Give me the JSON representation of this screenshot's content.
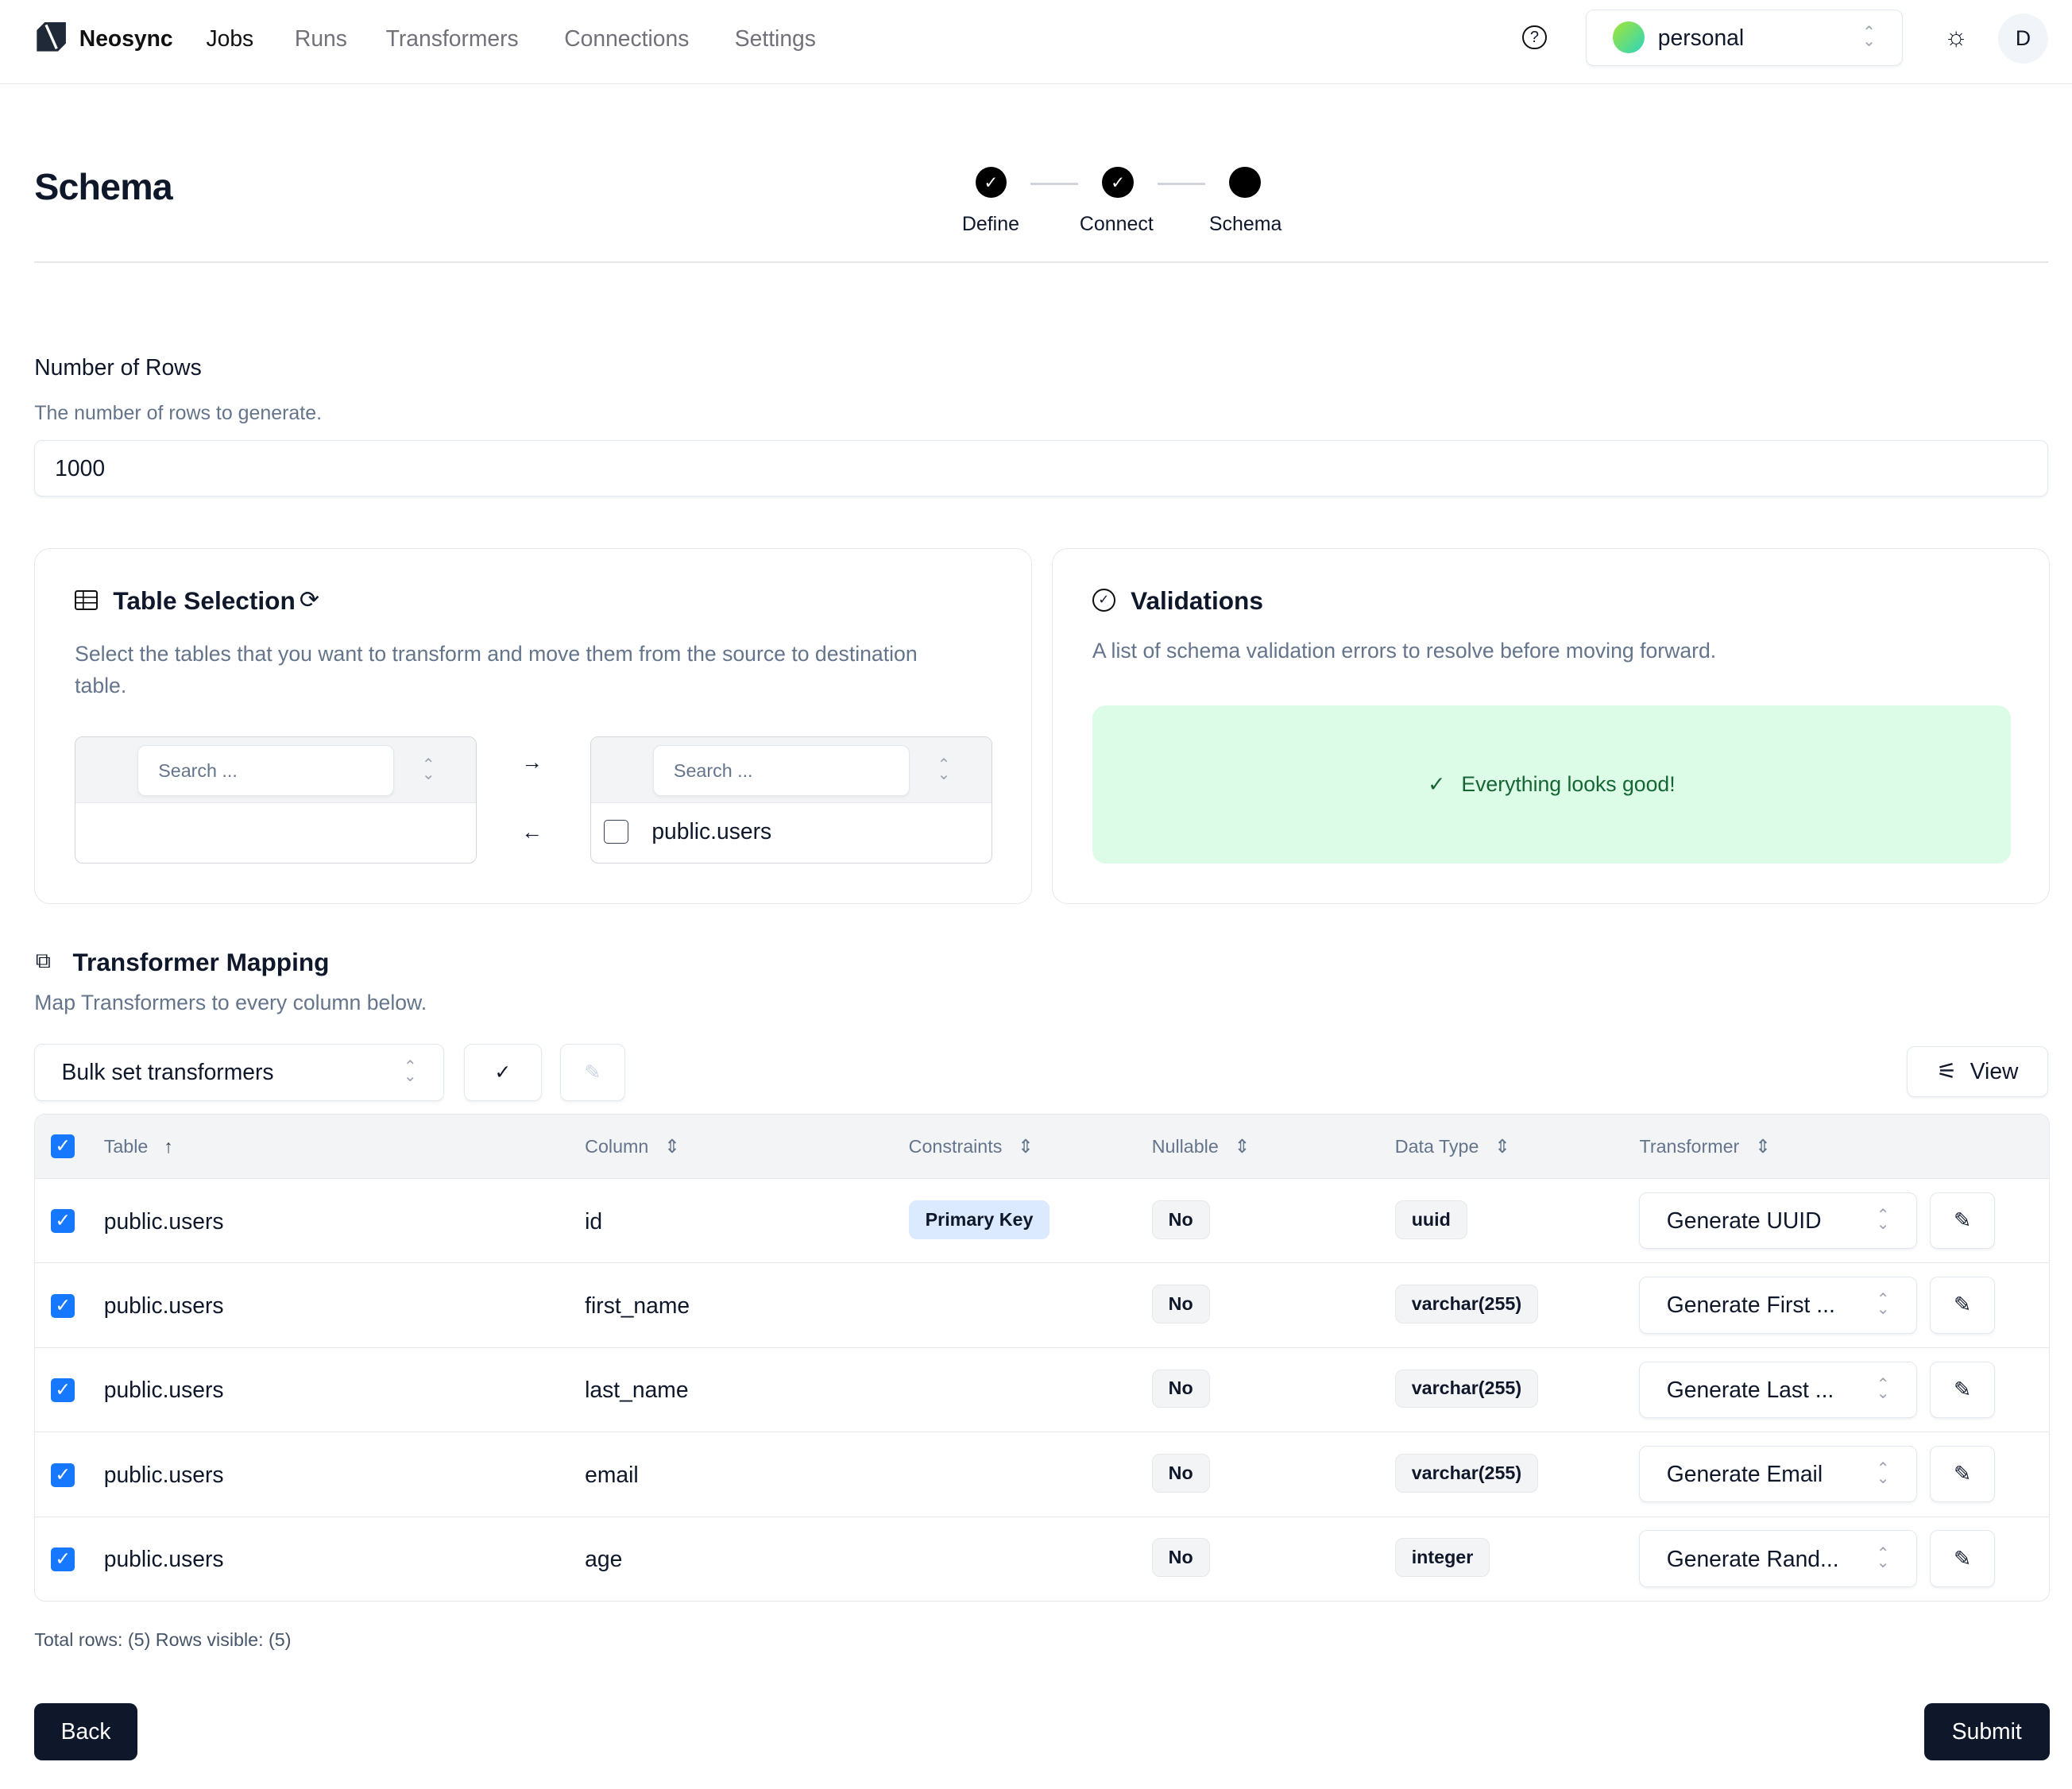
{
  "nav": {
    "brand": "Neosync",
    "items": [
      "Jobs",
      "Runs",
      "Transformers",
      "Connections",
      "Settings"
    ],
    "account": "personal",
    "avatar": "D"
  },
  "header": {
    "title": "Schema",
    "steps": [
      "Define",
      "Connect",
      "Schema"
    ]
  },
  "rows_field": {
    "label": "Number of Rows",
    "description": "The number of rows to generate.",
    "value": "1000"
  },
  "table_selection": {
    "title": "Table Selection",
    "description": "Select the tables that you want to transform and move them from the source to destination table.",
    "search_placeholder": "Search ...",
    "destination_items": [
      "public.users"
    ]
  },
  "validations": {
    "title": "Validations",
    "description": "A list of schema validation errors to resolve before moving forward.",
    "status": "Everything looks good!",
    "status_color": "#dcfce7"
  },
  "mapping": {
    "title": "Transformer Mapping",
    "description": "Map Transformers to every column below.",
    "bulk_label": "Bulk set transformers",
    "view_label": "View",
    "headers": [
      "Table",
      "Column",
      "Constraints",
      "Nullable",
      "Data Type",
      "Transformer"
    ],
    "rows": [
      {
        "table": "public.users",
        "column": "id",
        "constraint": "Primary Key",
        "nullable": "No",
        "type": "uuid",
        "transformer": "Generate UUID"
      },
      {
        "table": "public.users",
        "column": "first_name",
        "constraint": "",
        "nullable": "No",
        "type": "varchar(255)",
        "transformer": "Generate First ..."
      },
      {
        "table": "public.users",
        "column": "last_name",
        "constraint": "",
        "nullable": "No",
        "type": "varchar(255)",
        "transformer": "Generate Last ..."
      },
      {
        "table": "public.users",
        "column": "email",
        "constraint": "",
        "nullable": "No",
        "type": "varchar(255)",
        "transformer": "Generate Email"
      },
      {
        "table": "public.users",
        "column": "age",
        "constraint": "",
        "nullable": "No",
        "type": "integer",
        "transformer": "Generate Rand..."
      }
    ],
    "footer": "Total rows: (5) Rows visible: (5)"
  },
  "actions": {
    "back": "Back",
    "submit": "Submit"
  }
}
